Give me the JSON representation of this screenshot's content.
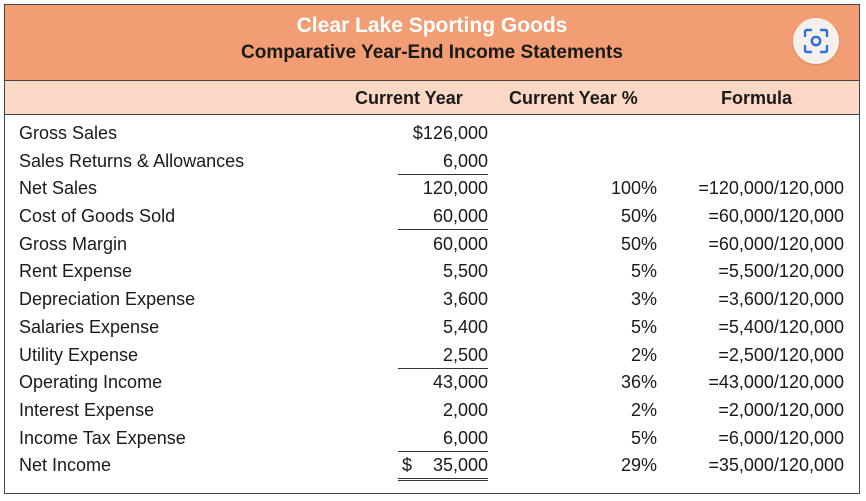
{
  "header": {
    "title": "Clear Lake Sporting Goods",
    "subtitle": "Comparative Year-End Income Statements"
  },
  "columns": {
    "current_year": "Current Year",
    "current_year_pct": "Current Year %",
    "formula": "Formula"
  },
  "lens_icon": "camera-search-icon",
  "colors": {
    "header_bg": "#f29d74",
    "column_header_bg": "#fbd8c5",
    "title_text": "#ffffff"
  },
  "rows": [
    {
      "label": "Gross Sales",
      "amount": "$126,000",
      "pct": "",
      "formula": ""
    },
    {
      "label": "Sales Returns & Allowances",
      "amount": "6,000",
      "pct": "",
      "formula": ""
    },
    {
      "label": "Net Sales",
      "amount": "120,000",
      "pct": "100%",
      "formula": "=120,000/120,000"
    },
    {
      "label": "Cost of Goods Sold",
      "amount": "60,000",
      "pct": "50%",
      "formula": "=60,000/120,000"
    },
    {
      "label": "Gross Margin",
      "amount": "60,000",
      "pct": "50%",
      "formula": "=60,000/120,000"
    },
    {
      "label": "Rent Expense",
      "amount": "5,500",
      "pct": "5%",
      "formula": "=5,500/120,000"
    },
    {
      "label": "Depreciation Expense",
      "amount": "3,600",
      "pct": "3%",
      "formula": "=3,600/120,000"
    },
    {
      "label": "Salaries Expense",
      "amount": "5,400",
      "pct": "5%",
      "formula": "=5,400/120,000"
    },
    {
      "label": "Utility Expense",
      "amount": "2,500",
      "pct": "2%",
      "formula": "=2,500/120,000"
    },
    {
      "label": "Operating Income",
      "amount": "43,000",
      "pct": "36%",
      "formula": "=43,000/120,000"
    },
    {
      "label": "Interest Expense",
      "amount": "2,000",
      "pct": "2%",
      "formula": "=2,000/120,000"
    },
    {
      "label": "Income Tax Expense",
      "amount": "6,000",
      "pct": "5%",
      "formula": "=6,000/120,000"
    },
    {
      "label": "Net Income",
      "amount_symbol": "$",
      "amount": "35,000",
      "pct": "29%",
      "formula": "=35,000/120,000"
    }
  ]
}
